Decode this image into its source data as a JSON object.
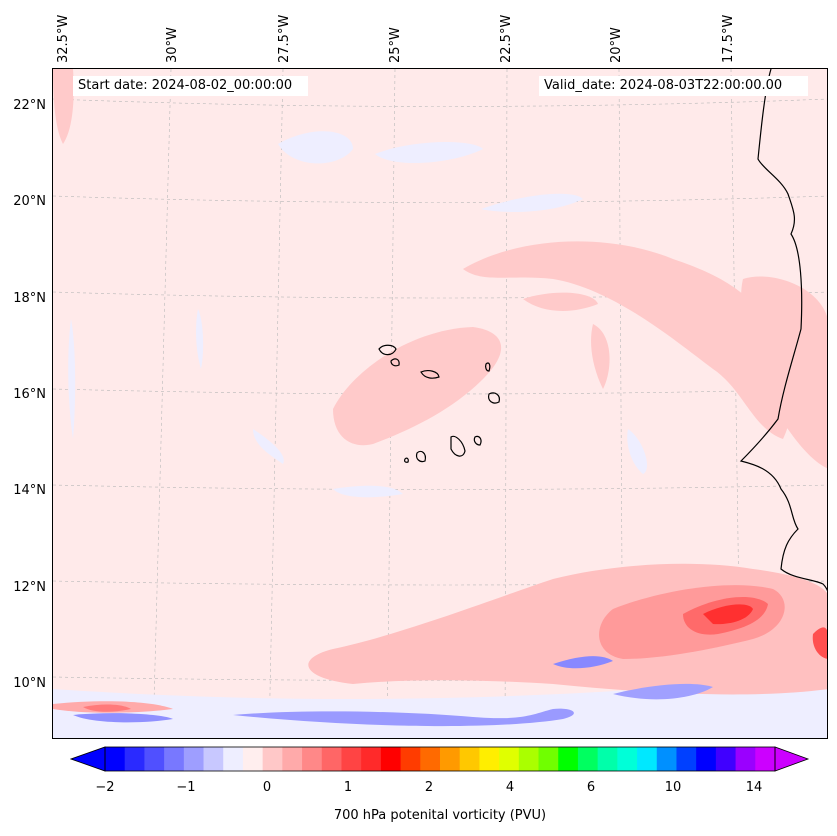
{
  "header": {
    "start_date": "Start date: 2024-08-02_00:00:00",
    "valid_date": "Valid_date: 2024-08-03T22:00:00.00"
  },
  "longitude_labels": [
    "32.5°W",
    "30°W",
    "27.5°W",
    "25°W",
    "22.5°W",
    "20°W",
    "17.5°W"
  ],
  "latitude_labels": [
    "22°N",
    "20°N",
    "18°N",
    "16°N",
    "14°N",
    "12°N",
    "10°N"
  ],
  "colorbar": {
    "title": "700 hPa potenital vorticity (PVU)",
    "tick_labels": [
      "−2",
      "−1",
      "0",
      "1",
      "2",
      "4",
      "6",
      "10",
      "14"
    ],
    "colors": [
      "#0000ff",
      "#2a2aff",
      "#5050ff",
      "#7878ff",
      "#9e9eff",
      "#c8c8ff",
      "#eeeeff",
      "#ffeeee",
      "#ffc8c8",
      "#ffaaaa",
      "#ff8888",
      "#ff6666",
      "#ff4444",
      "#ff2a2a",
      "#ff0000",
      "#ff3c00",
      "#ff6a00",
      "#ff9a00",
      "#ffc800",
      "#ffee00",
      "#e0ff00",
      "#aaff00",
      "#70ff00",
      "#00ff00",
      "#00ff60",
      "#00ffaa",
      "#00ffd8",
      "#00e8ff",
      "#0090ff",
      "#0040ff",
      "#0000ff",
      "#4000ff",
      "#9a00ff",
      "#cc00ff"
    ]
  },
  "map": {
    "background_color": "#ffeaea",
    "coastline_color": "#000000"
  }
}
